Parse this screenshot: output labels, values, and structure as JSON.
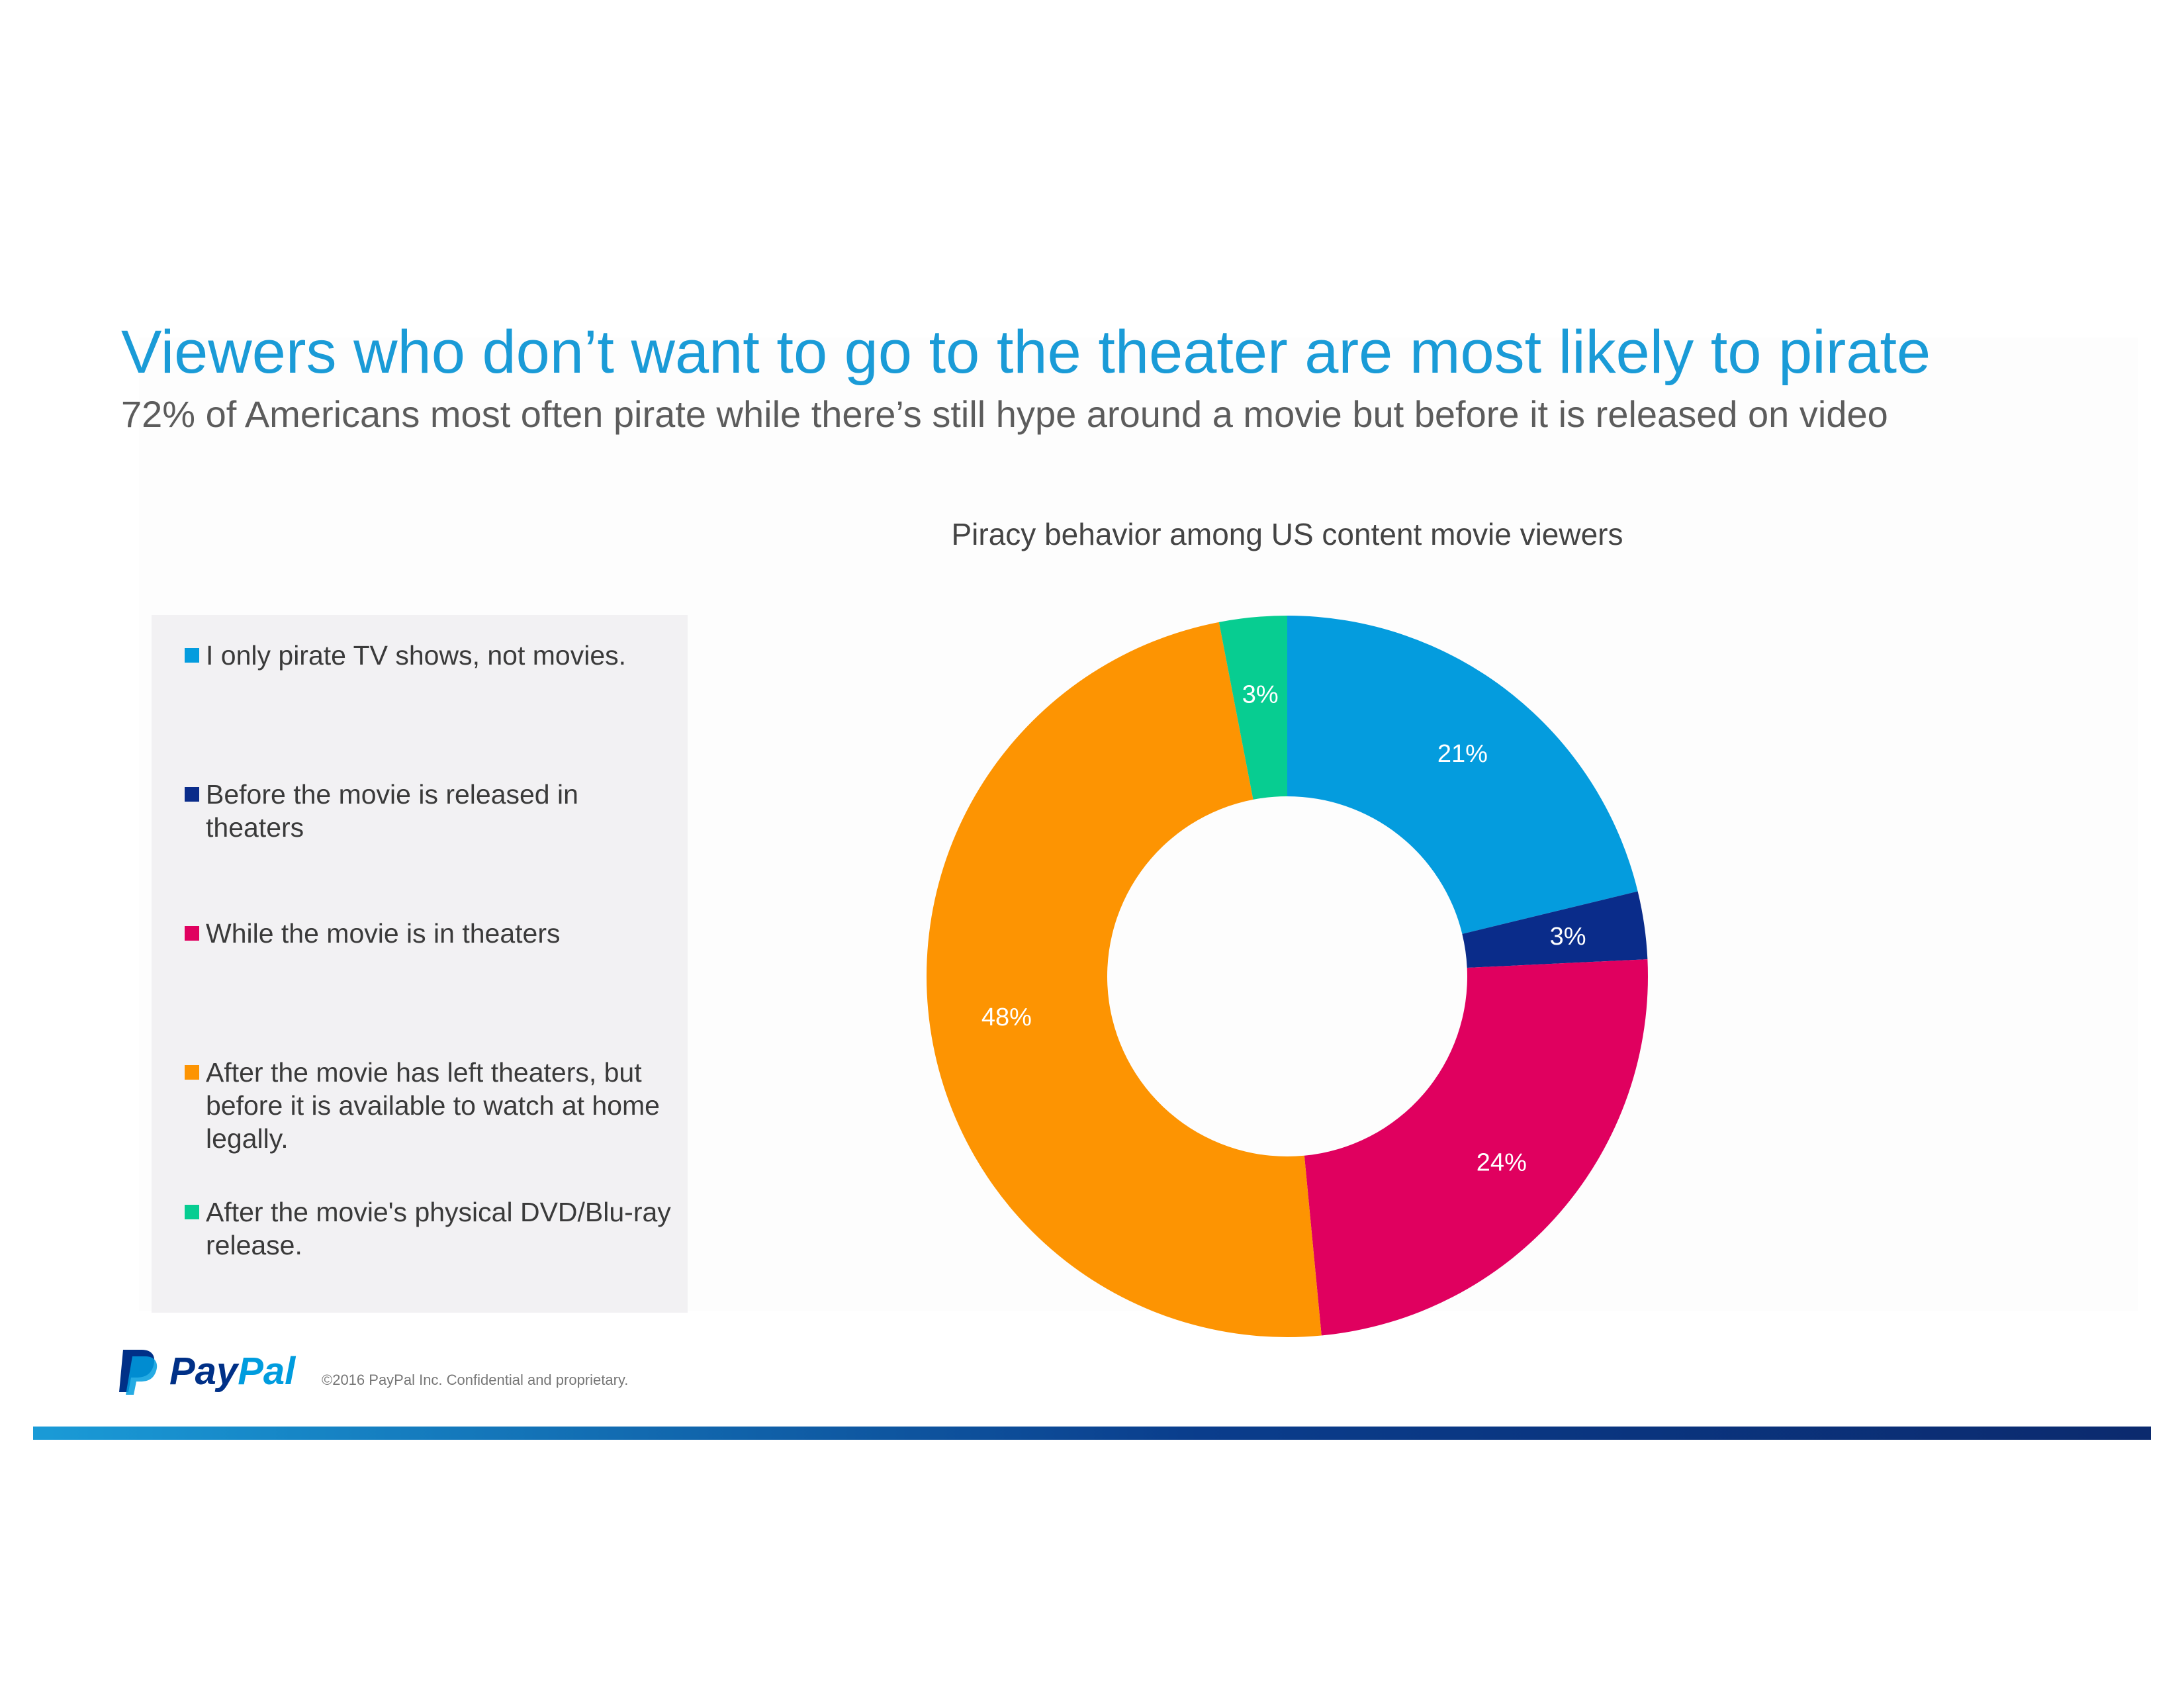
{
  "header": {
    "title": "Viewers who don’t want to go to the theater are most likely to pirate",
    "subtitle": "72% of Americans most often pirate while there’s still hype around a movie but before it is released on video"
  },
  "chart_data": {
    "type": "pie",
    "donut": true,
    "title": "Piracy behavior among US content movie viewers",
    "legend_position": "left",
    "categories": [
      "I only pirate TV shows, not movies.",
      "Before the movie is released in theaters",
      "While the movie is in theaters",
      "After the movie has left theaters, but before it is available to watch at home legally.",
      "After the movie's physical DVD/Blu-ray release."
    ],
    "values": [
      21,
      3,
      24,
      48,
      3
    ],
    "value_labels": [
      "21%",
      "3%",
      "24%",
      "48%",
      "3%"
    ],
    "colors": [
      "#049cde",
      "#0a2c8a",
      "#e0005f",
      "#fd9402",
      "#07cd91"
    ]
  },
  "footer": {
    "logo_text_pay": "Pay",
    "logo_text_pal": "Pal",
    "copyright": "©2016 PayPal Inc. Confidential  and proprietary.",
    "logo_colors": [
      "#003087",
      "#009cde"
    ]
  }
}
